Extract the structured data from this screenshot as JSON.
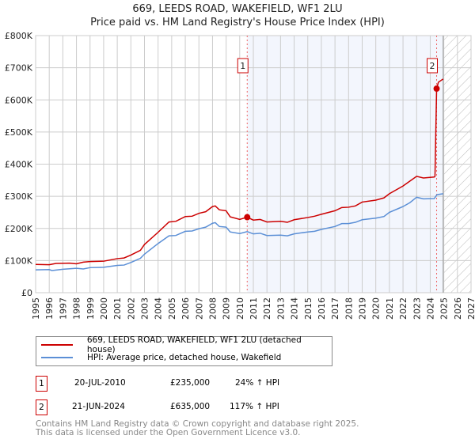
{
  "chart_data": {
    "type": "line",
    "title": "669, LEEDS ROAD, WAKEFIELD, WF1 2LU",
    "subtitle": "Price paid vs. HM Land Registry's House Price Index (HPI)",
    "xlim": [
      1995,
      2027
    ],
    "ylim": [
      0,
      800000
    ],
    "x_ticks": [
      "1995",
      "1996",
      "1997",
      "1998",
      "1999",
      "2000",
      "2001",
      "2002",
      "2003",
      "2004",
      "2005",
      "2006",
      "2007",
      "2008",
      "2009",
      "2010",
      "2011",
      "2012",
      "2013",
      "2014",
      "2015",
      "2016",
      "2017",
      "2018",
      "2019",
      "2020",
      "2021",
      "2022",
      "2023",
      "2024",
      "2025",
      "2026",
      "2027"
    ],
    "y_ticks": [
      {
        "v": 0,
        "label": "£0"
      },
      {
        "v": 100000,
        "label": "£100K"
      },
      {
        "v": 200000,
        "label": "£200K"
      },
      {
        "v": 300000,
        "label": "£300K"
      },
      {
        "v": 400000,
        "label": "£400K"
      },
      {
        "v": 500000,
        "label": "£500K"
      },
      {
        "v": 600000,
        "label": "£600K"
      },
      {
        "v": 700000,
        "label": "£700K"
      },
      {
        "v": 800000,
        "label": "£800K"
      }
    ],
    "grid": true,
    "shaded_from": 2010.55,
    "forecast_from": 2024.95,
    "series": [
      {
        "name": "669, LEEDS ROAD, WAKEFIELD, WF1 2LU (detached house)",
        "color": "#cc0000",
        "points": [
          [
            1995,
            88000
          ],
          [
            1996,
            87000
          ],
          [
            1996.5,
            91000
          ],
          [
            1997.5,
            92000
          ],
          [
            1998,
            90000
          ],
          [
            1998.5,
            95000
          ],
          [
            1999,
            97000
          ],
          [
            2000,
            98000
          ],
          [
            2001,
            106000
          ],
          [
            2001.5,
            108000
          ],
          [
            2002,
            117000
          ],
          [
            2002.7,
            132000
          ],
          [
            2003,
            150000
          ],
          [
            2004,
            188000
          ],
          [
            2004.8,
            220000
          ],
          [
            2005.3,
            222000
          ],
          [
            2006,
            237000
          ],
          [
            2006.5,
            238000
          ],
          [
            2007,
            247000
          ],
          [
            2007.5,
            252000
          ],
          [
            2008,
            268000
          ],
          [
            2008.2,
            270000
          ],
          [
            2008.5,
            258000
          ],
          [
            2009,
            255000
          ],
          [
            2009.3,
            236000
          ],
          [
            2010,
            228000
          ],
          [
            2010.55,
            235000
          ],
          [
            2011,
            226000
          ],
          [
            2011.5,
            228000
          ],
          [
            2012,
            220000
          ],
          [
            2013,
            222000
          ],
          [
            2013.5,
            219000
          ],
          [
            2014,
            227000
          ],
          [
            2015,
            234000
          ],
          [
            2015.5,
            238000
          ],
          [
            2016,
            244000
          ],
          [
            2017,
            255000
          ],
          [
            2017.5,
            265000
          ],
          [
            2018,
            266000
          ],
          [
            2018.5,
            270000
          ],
          [
            2019,
            282000
          ],
          [
            2020,
            288000
          ],
          [
            2020.6,
            295000
          ],
          [
            2021,
            308000
          ],
          [
            2022,
            332000
          ],
          [
            2022.5,
            347000
          ],
          [
            2023,
            362000
          ],
          [
            2023.5,
            357000
          ],
          [
            2024.3,
            360000
          ],
          [
            2024.35,
            362000
          ],
          [
            2024.47,
            635000
          ],
          [
            2024.6,
            655000
          ],
          [
            2024.95,
            665000
          ]
        ]
      },
      {
        "name": "HPI: Average price, detached house, Wakefield",
        "color": "#5b8fd6",
        "points": [
          [
            1995,
            71000
          ],
          [
            1996,
            72000
          ],
          [
            1996.2,
            69000
          ],
          [
            1997,
            73000
          ],
          [
            1998,
            76000
          ],
          [
            1998.5,
            74000
          ],
          [
            1999,
            78000
          ],
          [
            2000,
            79000
          ],
          [
            2001,
            85000
          ],
          [
            2001.5,
            86000
          ],
          [
            2002,
            94000
          ],
          [
            2002.7,
            107000
          ],
          [
            2003,
            120000
          ],
          [
            2004,
            153000
          ],
          [
            2004.8,
            177000
          ],
          [
            2005.3,
            178000
          ],
          [
            2006,
            191000
          ],
          [
            2006.5,
            192000
          ],
          [
            2007,
            199000
          ],
          [
            2007.5,
            204000
          ],
          [
            2008,
            216000
          ],
          [
            2008.2,
            218000
          ],
          [
            2008.5,
            206000
          ],
          [
            2009,
            204000
          ],
          [
            2009.3,
            189000
          ],
          [
            2010,
            184000
          ],
          [
            2010.55,
            190000
          ],
          [
            2011,
            183000
          ],
          [
            2011.5,
            185000
          ],
          [
            2012,
            178000
          ],
          [
            2013,
            179000
          ],
          [
            2013.5,
            177000
          ],
          [
            2014,
            183000
          ],
          [
            2015,
            189000
          ],
          [
            2015.5,
            191000
          ],
          [
            2016,
            197000
          ],
          [
            2017,
            206000
          ],
          [
            2017.5,
            215000
          ],
          [
            2018,
            215000
          ],
          [
            2018.5,
            219000
          ],
          [
            2019,
            227000
          ],
          [
            2020,
            232000
          ],
          [
            2020.6,
            237000
          ],
          [
            2021,
            250000
          ],
          [
            2022,
            268000
          ],
          [
            2022.5,
            280000
          ],
          [
            2023,
            297000
          ],
          [
            2023.5,
            292000
          ],
          [
            2024.3,
            293000
          ],
          [
            2024.5,
            305000
          ],
          [
            2024.95,
            308000
          ]
        ]
      }
    ],
    "annotations": [
      {
        "label": "1",
        "x": 2010.55,
        "y": 235000
      },
      {
        "label": "2",
        "x": 2024.47,
        "y": 635000
      }
    ]
  },
  "legend": {
    "item1": "669, LEEDS ROAD, WAKEFIELD, WF1 2LU (detached house)",
    "item2": "HPI: Average price, detached house, Wakefield"
  },
  "sales": [
    {
      "num": "1",
      "date": "20-JUL-2010",
      "price": "£235,000",
      "hpi": "24% ↑ HPI"
    },
    {
      "num": "2",
      "date": "21-JUN-2024",
      "price": "£635,000",
      "hpi": "117% ↑ HPI"
    }
  ],
  "footer": {
    "line1": "Contains HM Land Registry data © Crown copyright and database right 2025.",
    "line2": "This data is licensed under the Open Government Licence v3.0."
  }
}
